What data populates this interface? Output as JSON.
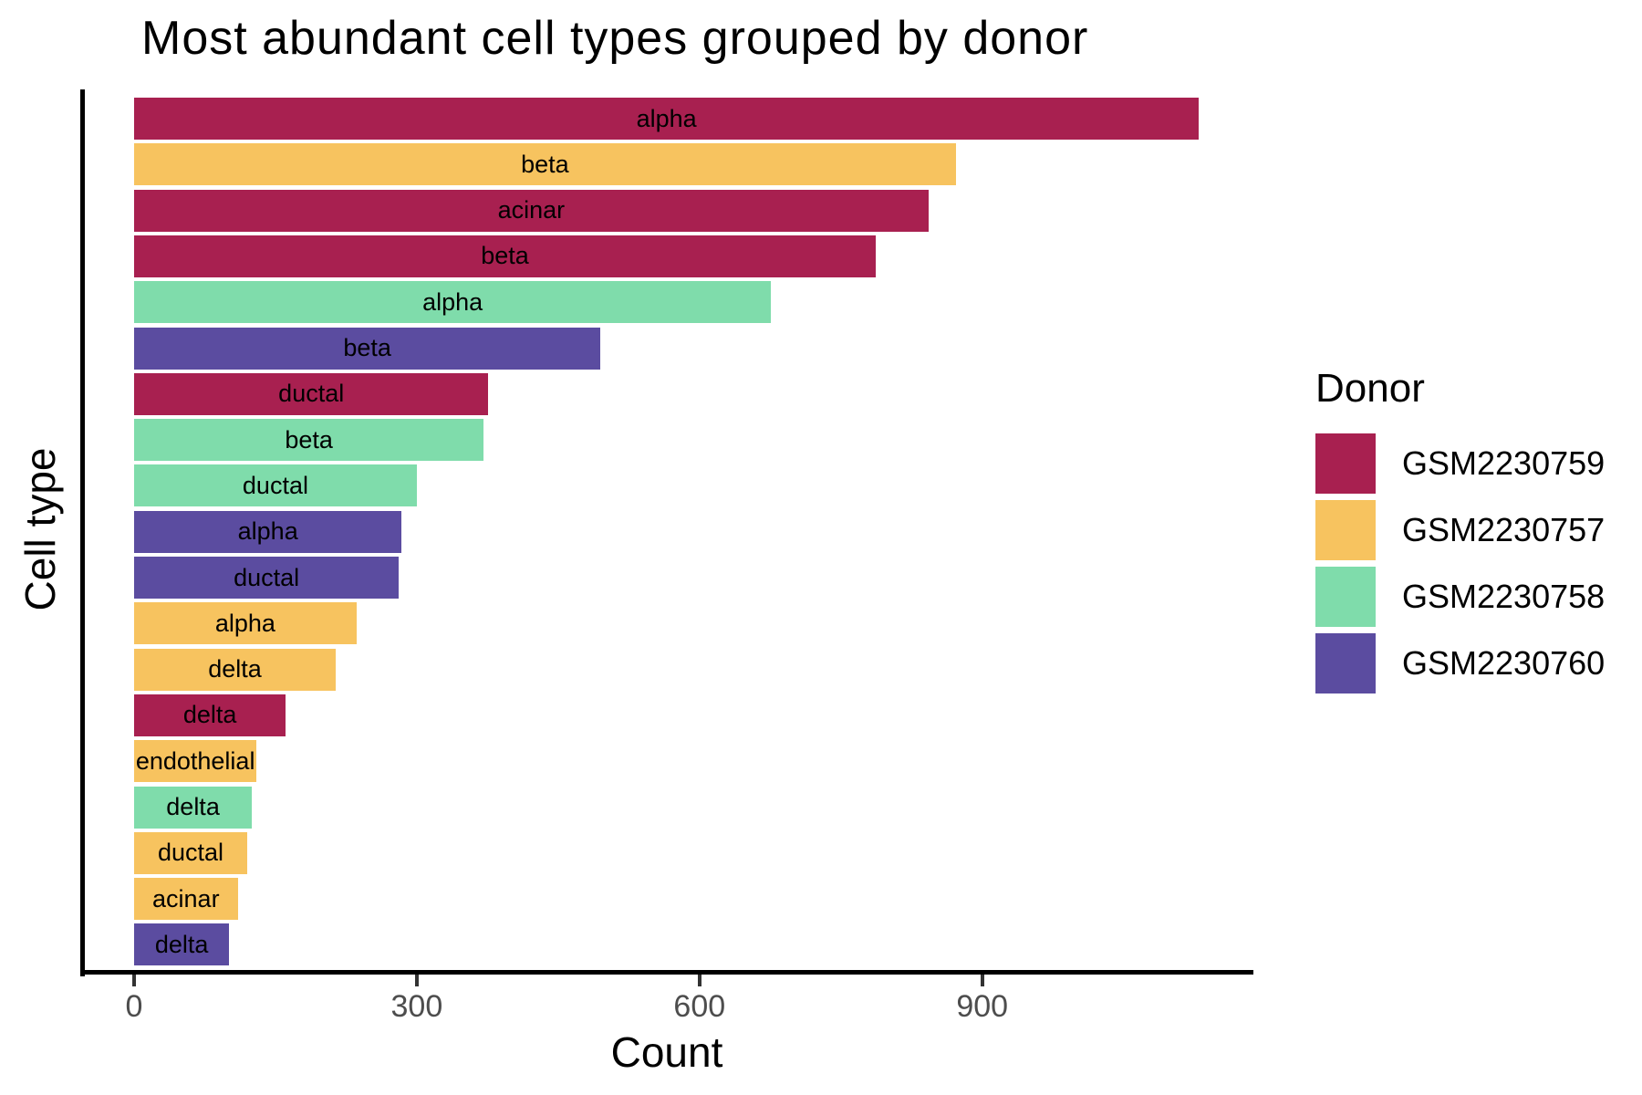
{
  "chart_data": {
    "type": "bar",
    "orientation": "horizontal",
    "title": "Most abundant cell types grouped by donor",
    "xlabel": "Count",
    "ylabel": "Cell type",
    "xticks": [
      0,
      300,
      600,
      900
    ],
    "xlim": [
      0,
      1186
    ],
    "grid": false,
    "background": "#ffffff",
    "axis_color": "#000000",
    "tick_label_color": "#4d4d4d",
    "legend": {
      "title": "Donor",
      "position": "right",
      "entries": [
        {
          "label": "GSM2230759",
          "color": "#A82050"
        },
        {
          "label": "GSM2230757",
          "color": "#F7C35F"
        },
        {
          "label": "GSM2230758",
          "color": "#7FDCAB"
        },
        {
          "label": "GSM2230760",
          "color": "#5B4CA0"
        }
      ]
    },
    "bars": [
      {
        "cell_type": "alpha",
        "donor": "GSM2230759",
        "count": 1130
      },
      {
        "cell_type": "beta",
        "donor": "GSM2230757",
        "count": 872
      },
      {
        "cell_type": "acinar",
        "donor": "GSM2230759",
        "count": 843
      },
      {
        "cell_type": "beta",
        "donor": "GSM2230759",
        "count": 787
      },
      {
        "cell_type": "alpha",
        "donor": "GSM2230758",
        "count": 676
      },
      {
        "cell_type": "beta",
        "donor": "GSM2230760",
        "count": 495
      },
      {
        "cell_type": "ductal",
        "donor": "GSM2230759",
        "count": 376
      },
      {
        "cell_type": "beta",
        "donor": "GSM2230758",
        "count": 371
      },
      {
        "cell_type": "ductal",
        "donor": "GSM2230758",
        "count": 300
      },
      {
        "cell_type": "alpha",
        "donor": "GSM2230760",
        "count": 284
      },
      {
        "cell_type": "ductal",
        "donor": "GSM2230760",
        "count": 281
      },
      {
        "cell_type": "alpha",
        "donor": "GSM2230757",
        "count": 236
      },
      {
        "cell_type": "delta",
        "donor": "GSM2230757",
        "count": 214
      },
      {
        "cell_type": "delta",
        "donor": "GSM2230759",
        "count": 161
      },
      {
        "cell_type": "endothelial",
        "donor": "GSM2230757",
        "count": 130
      },
      {
        "cell_type": "delta",
        "donor": "GSM2230758",
        "count": 125
      },
      {
        "cell_type": "ductal",
        "donor": "GSM2230757",
        "count": 120
      },
      {
        "cell_type": "acinar",
        "donor": "GSM2230757",
        "count": 110
      },
      {
        "cell_type": "delta",
        "donor": "GSM2230760",
        "count": 101
      }
    ]
  }
}
